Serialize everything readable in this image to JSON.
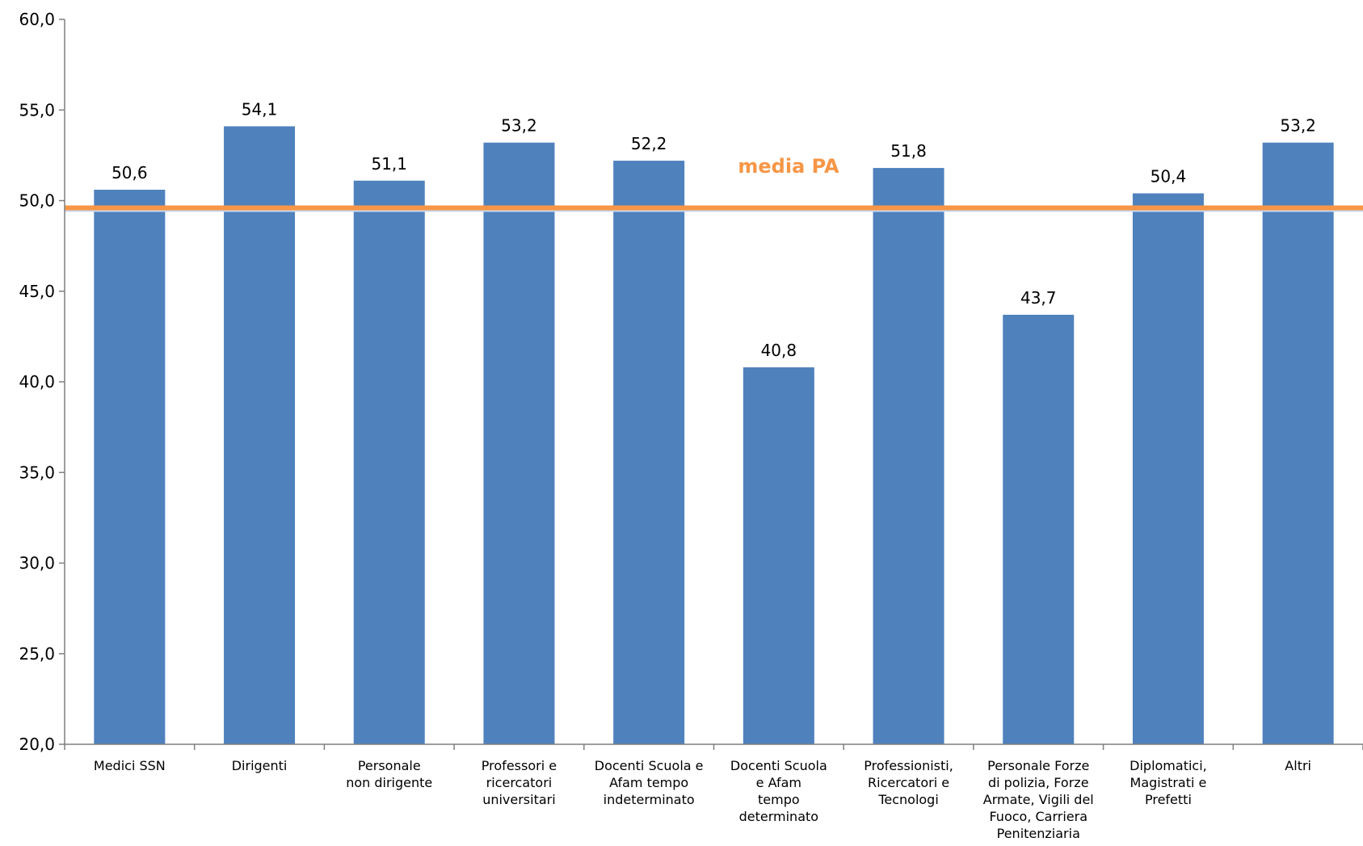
{
  "chart_data": {
    "type": "bar",
    "categories": [
      "Medici SSN",
      "Dirigenti",
      "Personale non dirigente",
      "Professori e ricercatori universitari",
      "Docenti Scuola e Afam tempo indeterminato",
      "Docenti Scuola e Afam tempo determinato",
      "Professionisti, Ricercatori e Tecnologi",
      "Personale Forze di polizia, Forze Armate, Vigili del Fuoco, Carriera Penitenziaria",
      "Diplomatici, Magistrati e Prefetti",
      "Altri"
    ],
    "category_lines": [
      [
        "Medici SSN"
      ],
      [
        "Dirigenti"
      ],
      [
        "Personale",
        "non dirigente"
      ],
      [
        "Professori e",
        "ricercatori",
        "universitari"
      ],
      [
        "Docenti Scuola e",
        "Afam tempo",
        "indeterminato"
      ],
      [
        "Docenti Scuola",
        "e Afam",
        "tempo",
        "determinato"
      ],
      [
        "Professionisti,",
        "Ricercatori e",
        "Tecnologi"
      ],
      [
        "Personale Forze",
        "di polizia, Forze",
        "Armate, Vigili del",
        "Fuoco, Carriera",
        "Penitenziaria"
      ],
      [
        "Diplomatici,",
        "Magistrati e",
        "Prefetti"
      ],
      [
        "Altri"
      ]
    ],
    "values": [
      50.6,
      54.1,
      51.1,
      53.2,
      52.2,
      40.8,
      51.8,
      43.7,
      50.4,
      53.2
    ],
    "data_labels": [
      "50,6",
      "54,1",
      "51,1",
      "53,2",
      "52,2",
      "40,8",
      "51,8",
      "43,7",
      "50,4",
      "53,2"
    ],
    "ylim": [
      20,
      60
    ],
    "yticks": [
      "20,0",
      "25,0",
      "30,0",
      "35,0",
      "40,0",
      "45,0",
      "50,0",
      "55,0",
      "60,0"
    ],
    "reference_line": {
      "label": "media PA",
      "value": 49.6
    },
    "colors": {
      "bar": "#4F81BD",
      "reference": "#F79646",
      "axis": "#7F7F7F"
    },
    "grid": false,
    "title": "",
    "xlabel": "",
    "ylabel": ""
  }
}
